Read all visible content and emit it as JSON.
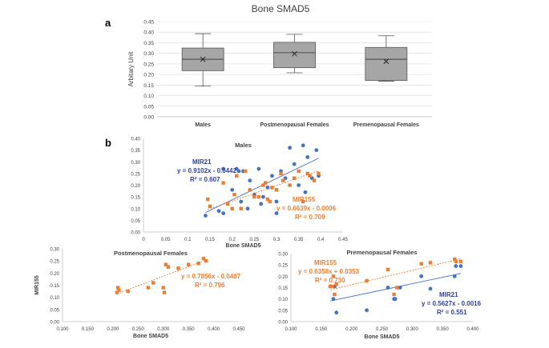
{
  "figure_title": "Bone SMAD5",
  "panel_labels": {
    "a": "a",
    "b": "b"
  },
  "colors": {
    "blue": "#4472C4",
    "orange": "#ED7D31",
    "box_fill": "#A6A6A6",
    "grid": "#D9D9D9",
    "axis": "#BFBFBF",
    "text": "#404040",
    "blue_text": "#2F3E9E"
  },
  "chart_data": [
    {
      "type": "box",
      "id": "box",
      "ylabel": "Arbitary Unit",
      "ylim": [
        0,
        0.45
      ],
      "yticks": [
        "0.00",
        "0.05",
        "0.10",
        "0.15",
        "0.20",
        "0.25",
        "0.30",
        "0.35",
        "0.40",
        "0.45"
      ],
      "categories": [
        "Males",
        "Postmenopausal Females",
        "Premenopausal Females"
      ],
      "boxes": [
        {
          "name": "Males",
          "min": 0.145,
          "q1": 0.218,
          "median": 0.272,
          "q3": 0.325,
          "max": 0.393,
          "mean": 0.272
        },
        {
          "name": "Postmenopausal Females",
          "min": 0.208,
          "q1": 0.232,
          "median": 0.303,
          "q3": 0.352,
          "max": 0.39,
          "mean": 0.298
        },
        {
          "name": "Premenopausal Females",
          "min": 0.168,
          "q1": 0.172,
          "median": 0.272,
          "q3": 0.328,
          "max": 0.383,
          "mean": 0.262
        }
      ]
    },
    {
      "type": "scatter",
      "id": "males",
      "title": "Males",
      "xlabel": "Bone SMAD5",
      "ylabel": "",
      "xlim": [
        0,
        0.45
      ],
      "ylim": [
        0,
        0.4
      ],
      "xticks": [
        "0",
        "0.05",
        "0.1",
        "0.15",
        "0.2",
        "0.25",
        "0.3",
        "0.35",
        "0.4",
        "0.45"
      ],
      "yticks": [
        "0.00",
        "0.05",
        "0.10",
        "0.15",
        "0.20",
        "0.25",
        "0.30",
        "0.35",
        "0.40"
      ],
      "series": [
        {
          "name": "MIR21",
          "color": "blue",
          "marker": "circle",
          "points": [
            [
              0.14,
              0.07
            ],
            [
              0.17,
              0.09
            ],
            [
              0.18,
              0.27
            ],
            [
              0.2,
              0.18
            ],
            [
              0.21,
              0.27
            ],
            [
              0.215,
              0.26
            ],
            [
              0.22,
              0.13
            ],
            [
              0.225,
              0.26
            ],
            [
              0.235,
              0.1
            ],
            [
              0.24,
              0.22
            ],
            [
              0.25,
              0.16
            ],
            [
              0.26,
              0.27
            ],
            [
              0.265,
              0.12
            ],
            [
              0.27,
              0.15
            ],
            [
              0.28,
              0.19
            ],
            [
              0.29,
              0.24
            ],
            [
              0.3,
              0.13
            ],
            [
              0.31,
              0.26
            ],
            [
              0.32,
              0.23
            ],
            [
              0.33,
              0.36
            ],
            [
              0.34,
              0.29
            ],
            [
              0.35,
              0.2
            ],
            [
              0.36,
              0.37
            ],
            [
              0.365,
              0.17
            ],
            [
              0.37,
              0.32
            ],
            [
              0.38,
              0.23
            ],
            [
              0.39,
              0.35
            ],
            [
              0.395,
              0.24
            ],
            [
              0.3,
              0.08
            ],
            [
              0.18,
              0.08
            ]
          ],
          "trendline": {
            "slope": 0.9102,
            "intercept": -0.0442,
            "equation": "y = 0.9102x - 0.0442",
            "r2": "R² = 0.607"
          }
        },
        {
          "name": "MIR155",
          "color": "orange",
          "marker": "square",
          "points": [
            [
              0.145,
              0.14
            ],
            [
              0.15,
              0.11
            ],
            [
              0.18,
              0.21
            ],
            [
              0.19,
              0.12
            ],
            [
              0.2,
              0.1
            ],
            [
              0.21,
              0.24
            ],
            [
              0.22,
              0.1
            ],
            [
              0.23,
              0.26
            ],
            [
              0.24,
              0.18
            ],
            [
              0.25,
              0.15
            ],
            [
              0.26,
              0.15
            ],
            [
              0.27,
              0.2
            ],
            [
              0.275,
              0.21
            ],
            [
              0.28,
              0.14
            ],
            [
              0.29,
              0.19
            ],
            [
              0.3,
              0.18
            ],
            [
              0.31,
              0.25
            ],
            [
              0.315,
              0.22
            ],
            [
              0.33,
              0.2
            ],
            [
              0.34,
              0.23
            ],
            [
              0.35,
              0.26
            ],
            [
              0.36,
              0.13
            ],
            [
              0.37,
              0.25
            ],
            [
              0.375,
              0.24
            ],
            [
              0.385,
              0.22
            ],
            [
              0.395,
              0.25
            ],
            [
              0.205,
              0.16
            ],
            [
              0.285,
              0.13
            ]
          ],
          "trendline": {
            "slope": 0.6639,
            "intercept": -0.0006,
            "equation": "y = 0.6639x - 0.0006",
            "r2": "R² = 0.709"
          }
        }
      ]
    },
    {
      "type": "scatter",
      "id": "postmeno",
      "title": "Postmenopausal Females",
      "xlabel": "Bone SMAD5",
      "ylabel": "MIR155",
      "xlim": [
        0.1,
        0.45
      ],
      "ylim": [
        0,
        0.3
      ],
      "xticks": [
        "0.100",
        "0.150",
        "0.200",
        "0.250",
        "0.300",
        "0.350",
        "0.400",
        "0.450"
      ],
      "yticks": [
        "0.00",
        "0.05",
        "0.10",
        "0.15",
        "0.20",
        "0.25",
        "0.30"
      ],
      "series": [
        {
          "name": "MIR155",
          "color": "orange",
          "marker": "square",
          "points": [
            [
              0.208,
              0.12
            ],
            [
              0.21,
              0.14
            ],
            [
              0.212,
              0.13
            ],
            [
              0.23,
              0.125
            ],
            [
              0.27,
              0.14
            ],
            [
              0.28,
              0.16
            ],
            [
              0.3,
              0.14
            ],
            [
              0.302,
              0.12
            ],
            [
              0.305,
              0.235
            ],
            [
              0.31,
              0.225
            ],
            [
              0.33,
              0.22
            ],
            [
              0.35,
              0.235
            ],
            [
              0.37,
              0.24
            ],
            [
              0.38,
              0.26
            ],
            [
              0.385,
              0.25
            ]
          ],
          "trendline": {
            "slope": 0.7856,
            "intercept": -0.0487,
            "equation": "y = 0.7856x - 0.0487",
            "r2": "R² = 0.796"
          }
        }
      ]
    },
    {
      "type": "scatter",
      "id": "premeno",
      "title": "Premenopausal Females",
      "xlabel": "Bone SMAD5",
      "ylabel": "",
      "xlim": [
        0.1,
        0.4
      ],
      "ylim": [
        0,
        0.3
      ],
      "xticks": [
        "0.100",
        "0.150",
        "0.200",
        "0.250",
        "0.300",
        "0.350",
        "0.400"
      ],
      "yticks": [
        "0.00",
        "0.05",
        "0.10",
        "0.15",
        "0.20",
        "0.25",
        "0.30"
      ],
      "series": [
        {
          "name": "MIR21",
          "color": "blue",
          "marker": "circle",
          "points": [
            [
              0.165,
              0.155
            ],
            [
              0.17,
              0.1
            ],
            [
              0.172,
              0.155
            ],
            [
              0.175,
              0.04
            ],
            [
              0.225,
              0.05
            ],
            [
              0.26,
              0.15
            ],
            [
              0.27,
              0.1
            ],
            [
              0.272,
              0.1
            ],
            [
              0.28,
              0.15
            ],
            [
              0.315,
              0.2
            ],
            [
              0.33,
              0.145
            ],
            [
              0.37,
              0.2
            ],
            [
              0.38,
              0.245
            ],
            [
              0.372,
              0.245
            ]
          ],
          "trendline": {
            "slope": 0.5627,
            "intercept": -0.0016,
            "equation": "y = 0.5627x - 0.0016",
            "r2": "R² = 0.551"
          }
        },
        {
          "name": "MIR155",
          "color": "orange",
          "marker": "square",
          "points": [
            [
              0.165,
              0.155
            ],
            [
              0.17,
              0.2
            ],
            [
              0.172,
              0.12
            ],
            [
              0.175,
              0.165
            ],
            [
              0.225,
              0.18
            ],
            [
              0.26,
              0.23
            ],
            [
              0.27,
              0.12
            ],
            [
              0.275,
              0.15
            ],
            [
              0.315,
              0.255
            ],
            [
              0.33,
              0.26
            ],
            [
              0.37,
              0.275
            ],
            [
              0.372,
              0.265
            ],
            [
              0.38,
              0.265
            ],
            [
              0.168,
              0.155
            ]
          ],
          "trendline": {
            "slope": 0.6358,
            "intercept": 0.0353,
            "equation": "y = 0.6358x + 0.0353",
            "r2": "R² = 0.730"
          }
        }
      ]
    }
  ]
}
